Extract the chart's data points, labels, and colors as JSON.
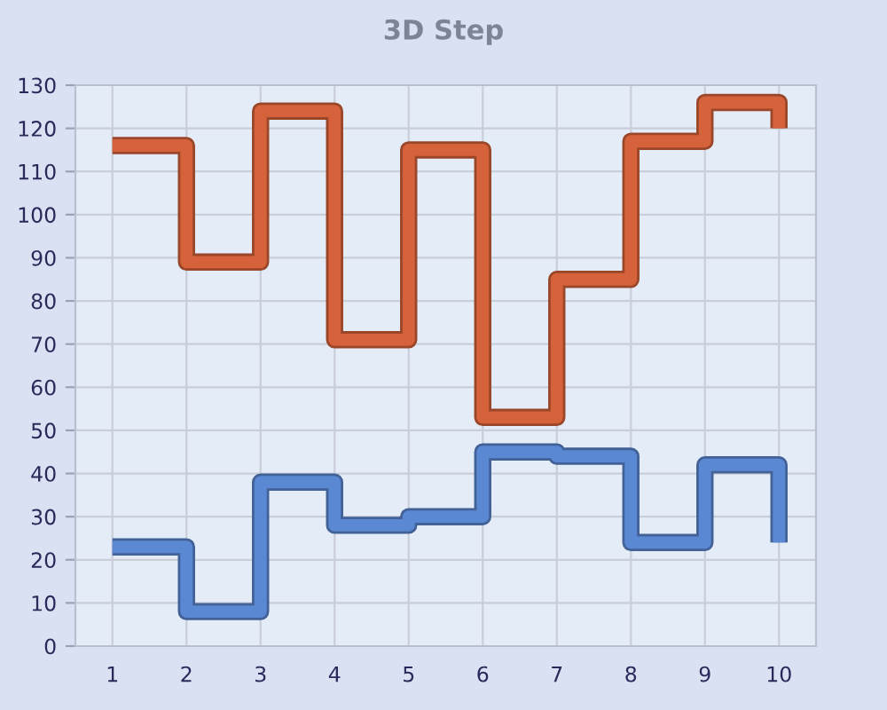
{
  "chart_data": {
    "type": "step",
    "title": "3D Step",
    "categories": [
      "1",
      "2",
      "3",
      "4",
      "5",
      "6",
      "7",
      "8",
      "9",
      "10"
    ],
    "series": [
      {
        "color": "#d5623a",
        "values": [
          116,
          89,
          124,
          71,
          115,
          53,
          85,
          117,
          126,
          120
        ]
      },
      {
        "color": "#5b88d2",
        "values": [
          23,
          8,
          38,
          28,
          30,
          45,
          44,
          24,
          42,
          24
        ]
      }
    ],
    "ylim": [
      0,
      130
    ],
    "yticks": [
      0,
      10,
      20,
      30,
      40,
      50,
      60,
      70,
      80,
      90,
      100,
      110,
      120,
      130
    ],
    "grid": true
  }
}
